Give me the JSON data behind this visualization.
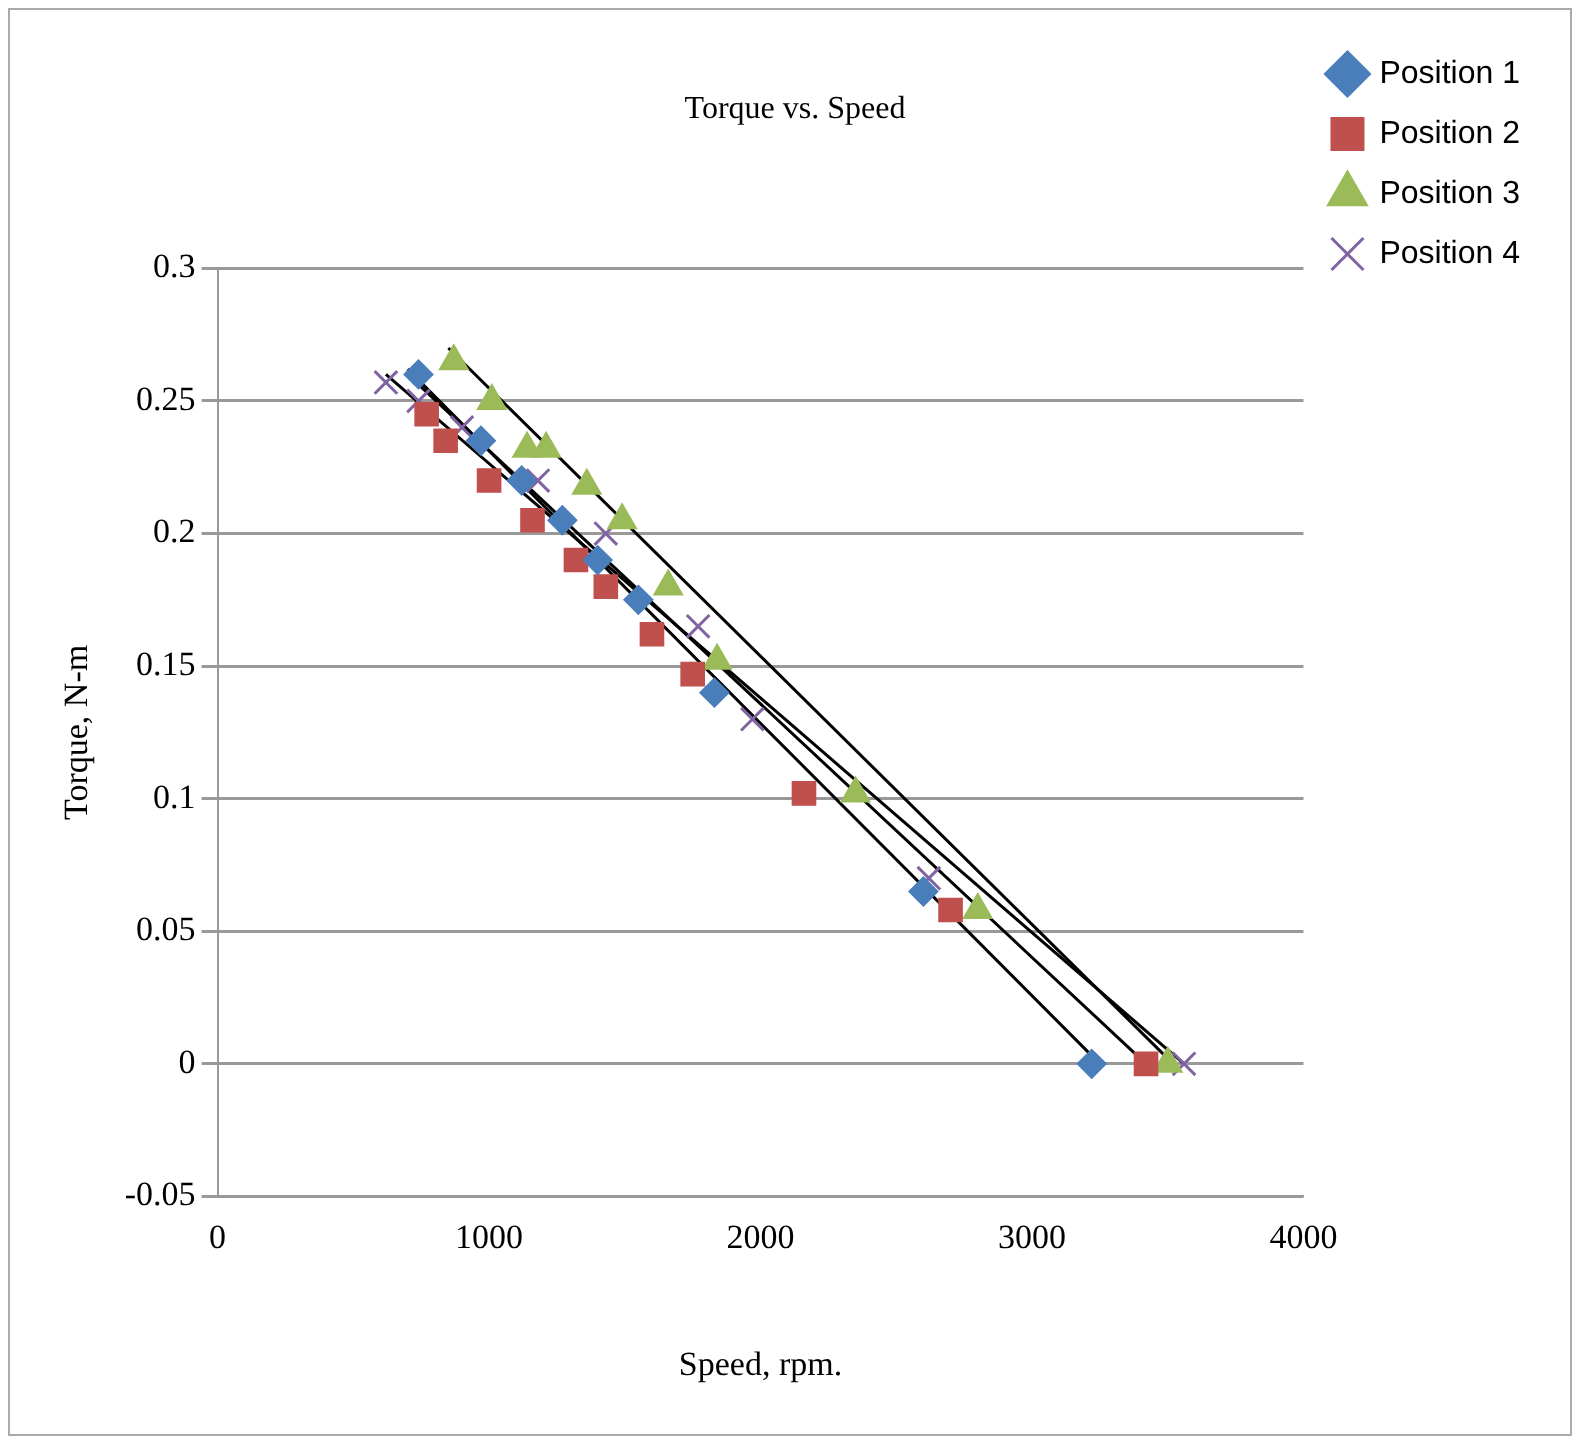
{
  "chart_data": {
    "type": "scatter",
    "title": "Torque vs. Speed",
    "xlabel": "Speed, rpm.",
    "ylabel": "Torque, N-m",
    "xlim": [
      0,
      4000
    ],
    "xticks": [
      0,
      1000,
      2000,
      3000,
      4000
    ],
    "ylim": [
      -0.05,
      0.3
    ],
    "yticks": [
      -0.05,
      0,
      0.05,
      0.1,
      0.15,
      0.2,
      0.25,
      0.3
    ],
    "grid": "y",
    "legend": "right",
    "series": [
      {
        "name": "Position 1",
        "color": "#4a7ebb",
        "marker": "diamond",
        "x": [
          740,
          970,
          1120,
          1270,
          1400,
          1550,
          1830,
          2600,
          3220
        ],
        "values": [
          0.26,
          0.235,
          0.22,
          0.205,
          0.19,
          0.175,
          0.14,
          0.065,
          0
        ]
      },
      {
        "name": "Position 2",
        "color": "#c0504d",
        "marker": "square",
        "x": [
          770,
          840,
          1000,
          1160,
          1320,
          1430,
          1600,
          1750,
          2160,
          2700,
          3420
        ],
        "values": [
          0.245,
          0.235,
          0.22,
          0.205,
          0.19,
          0.18,
          0.162,
          0.147,
          0.102,
          0.058,
          0
        ]
      },
      {
        "name": "Position 3",
        "color": "#9bbb59",
        "marker": "triangle",
        "x": [
          870,
          1010,
          1140,
          1210,
          1360,
          1490,
          1660,
          1840,
          2350,
          2800,
          3500
        ],
        "values": [
          0.265,
          0.25,
          0.232,
          0.232,
          0.218,
          0.205,
          0.18,
          0.152,
          0.102,
          0.058,
          0
        ]
      },
      {
        "name": "Position 4",
        "color": "#8064a2",
        "marker": "cross",
        "x": [
          620,
          740,
          900,
          1180,
          1430,
          1770,
          1970,
          2620,
          3560
        ],
        "values": [
          0.257,
          0.25,
          0.24,
          0.22,
          0.2,
          0.165,
          0.13,
          0.07,
          0
        ]
      },
      {
        "type": "line",
        "color": "#000000",
        "marker": "none",
        "x": [
          700,
          3250
        ],
        "values": [
          0.262,
          0
        ]
      },
      {
        "type": "line",
        "color": "#000000",
        "marker": "none",
        "x": [
          700,
          3420
        ],
        "values": [
          0.26,
          0
        ]
      },
      {
        "type": "line",
        "color": "#000000",
        "marker": "none",
        "x": [
          850,
          3520
        ],
        "values": [
          0.27,
          0
        ]
      },
      {
        "type": "line",
        "color": "#000000",
        "marker": "none",
        "x": [
          620,
          3560
        ],
        "values": [
          0.26,
          0
        ]
      }
    ]
  }
}
